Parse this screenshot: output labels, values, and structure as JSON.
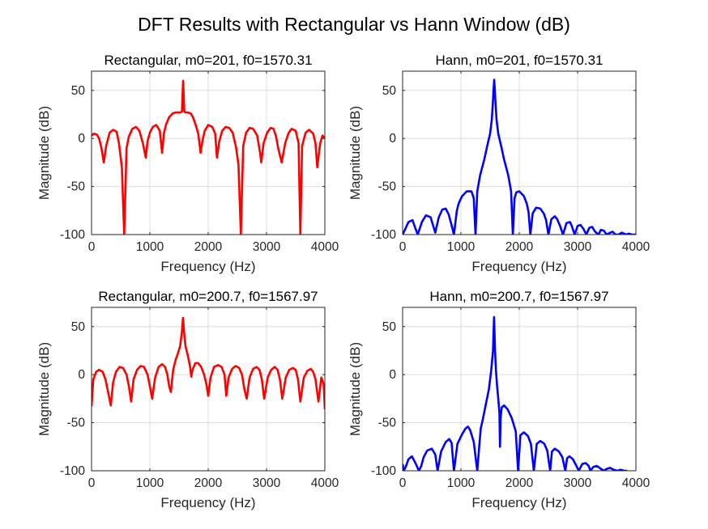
{
  "figure": {
    "title": "DFT Results with Rectangular vs Hann Window (dB)"
  },
  "colors": {
    "rectangular": "#ff0000",
    "hann": "#0000ff",
    "grid": "#dcdcdc",
    "axis": "#262626"
  },
  "chart_data": [
    {
      "type": "line",
      "title": "Rectangular, m0=201, f0=1570.31",
      "xlabel": "Frequency (Hz)",
      "ylabel": "Magnitude (dB)",
      "xlim": [
        0,
        4000
      ],
      "ylim": [
        -100,
        70
      ],
      "xticks": [
        "0",
        "1000",
        "2000",
        "3000",
        "4000"
      ],
      "yticks": [
        "-100",
        "-50",
        "0",
        "50"
      ],
      "grid": true,
      "color": "#ff0000",
      "series": [
        {
          "x": [
            0,
            40,
            90,
            130,
            170,
            210,
            250,
            310,
            370,
            430,
            470,
            520,
            560,
            600,
            640,
            700,
            760,
            820,
            880,
            930,
            960,
            1000,
            1050,
            1110,
            1170,
            1210,
            1240,
            1280,
            1330,
            1390,
            1440,
            1490,
            1520,
            1550,
            1560,
            1570.31,
            1580,
            1590,
            1610,
            1650,
            1700,
            1740,
            1780,
            1830,
            1870,
            1900,
            1940,
            2000,
            2070,
            2120,
            2150,
            2190,
            2240,
            2300,
            2360,
            2420,
            2480,
            2520,
            2560,
            2600,
            2650,
            2710,
            2770,
            2840,
            2890,
            2910,
            2950,
            3010,
            3070,
            3120,
            3160,
            3200,
            3260,
            3320,
            3380,
            3430,
            3500,
            3550,
            3580,
            3610,
            3670,
            3730,
            3800,
            3840,
            3870,
            3920,
            3960,
            4000
          ],
          "y": [
            3,
            5,
            4,
            0,
            -10,
            -25,
            -8,
            6,
            9,
            7,
            -5,
            -30,
            -100,
            -10,
            2,
            10,
            12,
            8,
            -5,
            -20,
            -3,
            6,
            12,
            14,
            8,
            -15,
            5,
            15,
            22,
            26,
            27,
            27,
            27,
            28,
            45,
            60,
            45,
            28,
            27,
            27,
            26,
            22,
            15,
            5,
            -15,
            -3,
            8,
            14,
            12,
            5,
            -20,
            -3,
            8,
            12,
            11,
            6,
            -10,
            -28,
            -100,
            -8,
            6,
            11,
            10,
            3,
            -15,
            -25,
            -5,
            6,
            11,
            10,
            3,
            -10,
            -25,
            -5,
            6,
            10,
            8,
            -5,
            -100,
            -8,
            6,
            9,
            5,
            -5,
            -30,
            -5,
            3,
            0
          ]
        }
      ]
    },
    {
      "type": "line",
      "title": "Hann, m0=201, f0=1570.31",
      "xlabel": "Frequency (Hz)",
      "ylabel": "Magnitude (dB)",
      "xlim": [
        0,
        4000
      ],
      "ylim": [
        -100,
        70
      ],
      "xticks": [
        "0",
        "1000",
        "2000",
        "3000",
        "4000"
      ],
      "yticks": [
        "-100",
        "-50",
        "0",
        "50"
      ],
      "grid": true,
      "color": "#0000ff",
      "series": [
        {
          "x": [
            0,
            40,
            100,
            170,
            210,
            260,
            330,
            400,
            480,
            520,
            560,
            620,
            680,
            740,
            790,
            830,
            880,
            930,
            960,
            980,
            1020,
            1100,
            1180,
            1220,
            1250,
            1280,
            1330,
            1400,
            1450,
            1500,
            1530,
            1550,
            1560,
            1570.31,
            1580,
            1590,
            1610,
            1640,
            1690,
            1740,
            1810,
            1860,
            1890,
            1920,
            1950,
            2000,
            2080,
            2130,
            2160,
            2190,
            2230,
            2290,
            2360,
            2420,
            2460,
            2500,
            2550,
            2610,
            2650,
            2700,
            2750,
            2810,
            2870,
            2900,
            2950,
            3000,
            3050,
            3100,
            3150,
            3200,
            3250,
            3300,
            3360,
            3400,
            3450,
            3500,
            3560,
            3600,
            3650,
            3700,
            3760,
            3830,
            3880,
            3930,
            3980,
            4000
          ],
          "y": [
            -100,
            -95,
            -87,
            -85,
            -92,
            -100,
            -87,
            -80,
            -82,
            -90,
            -98,
            -82,
            -74,
            -73,
            -79,
            -88,
            -100,
            -75,
            -68,
            -65,
            -60,
            -55,
            -55,
            -62,
            -100,
            -55,
            -38,
            -22,
            -8,
            5,
            20,
            40,
            52,
            61,
            52,
            40,
            20,
            5,
            -8,
            -22,
            -38,
            -55,
            -100,
            -62,
            -56,
            -55,
            -60,
            -68,
            -77,
            -100,
            -78,
            -72,
            -73,
            -78,
            -85,
            -100,
            -84,
            -81,
            -84,
            -91,
            -100,
            -88,
            -87,
            -91,
            -100,
            -91,
            -90,
            -94,
            -100,
            -93,
            -92,
            -97,
            -100,
            -95,
            -96,
            -100,
            -98,
            -97,
            -100,
            -100,
            -98,
            -100,
            -99,
            -100,
            -100,
            -100
          ]
        }
      ]
    },
    {
      "type": "line",
      "title": "Rectangular, m0=200.7, f0=1567.97",
      "xlabel": "Frequency (Hz)",
      "ylabel": "Magnitude (dB)",
      "xlim": [
        0,
        4000
      ],
      "ylim": [
        -100,
        70
      ],
      "xticks": [
        "0",
        "1000",
        "2000",
        "3000",
        "4000"
      ],
      "yticks": [
        "-100",
        "-50",
        "0",
        "50"
      ],
      "grid": true,
      "color": "#ff0000",
      "series": [
        {
          "x": [
            0,
            30,
            80,
            130,
            190,
            240,
            290,
            330,
            370,
            420,
            480,
            540,
            600,
            640,
            680,
            720,
            780,
            840,
            900,
            960,
            1000,
            1040,
            1090,
            1150,
            1210,
            1260,
            1300,
            1330,
            1360,
            1400,
            1440,
            1480,
            1520,
            1550,
            1567.97,
            1585,
            1610,
            1650,
            1690,
            1710,
            1730,
            1780,
            1830,
            1880,
            1930,
            1970,
            2000,
            2040,
            2100,
            2170,
            2230,
            2280,
            2310,
            2350,
            2410,
            2470,
            2530,
            2580,
            2620,
            2660,
            2710,
            2770,
            2830,
            2880,
            2920,
            2960,
            3020,
            3080,
            3140,
            3190,
            3230,
            3270,
            3330,
            3390,
            3450,
            3500,
            3540,
            3580,
            3640,
            3700,
            3760,
            3800,
            3840,
            3890,
            3940,
            3980,
            4000
          ],
          "y": [
            -33,
            -5,
            3,
            5,
            3,
            -5,
            -20,
            -32,
            -8,
            3,
            8,
            7,
            0,
            -12,
            -28,
            -5,
            5,
            9,
            8,
            0,
            -12,
            -25,
            -3,
            8,
            11,
            8,
            0,
            -12,
            -18,
            5,
            15,
            22,
            30,
            45,
            59,
            45,
            30,
            20,
            8,
            -2,
            5,
            12,
            12,
            8,
            0,
            -10,
            -22,
            -3,
            8,
            10,
            8,
            0,
            -22,
            -3,
            6,
            9,
            7,
            0,
            -15,
            -25,
            -3,
            6,
            8,
            5,
            -5,
            -25,
            -3,
            5,
            8,
            5,
            -5,
            -25,
            -3,
            5,
            7,
            5,
            -5,
            -28,
            -3,
            4,
            6,
            3,
            -5,
            -28,
            -3,
            -10,
            -36
          ]
        }
      ]
    },
    {
      "type": "line",
      "title": "Hann, m0=200.7, f0=1567.97",
      "xlabel": "Frequency (Hz)",
      "ylabel": "Magnitude (dB)",
      "xlim": [
        0,
        4000
      ],
      "ylim": [
        -100,
        70
      ],
      "xticks": [
        "0",
        "1000",
        "2000",
        "3000",
        "4000"
      ],
      "yticks": [
        "-100",
        "-50",
        "0",
        "50"
      ],
      "grid": true,
      "color": "#0000ff",
      "series": [
        {
          "x": [
            0,
            20,
            60,
            100,
            160,
            220,
            280,
            320,
            360,
            420,
            500,
            560,
            600,
            660,
            740,
            800,
            840,
            880,
            940,
            1020,
            1080,
            1120,
            1160,
            1220,
            1280,
            1320,
            1340,
            1370,
            1420,
            1480,
            1520,
            1550,
            1567.97,
            1585,
            1600,
            1620,
            1640,
            1660,
            1670,
            1680,
            1700,
            1740,
            1800,
            1870,
            1940,
            1980,
            2020,
            2080,
            2150,
            2200,
            2250,
            2300,
            2360,
            2430,
            2480,
            2530,
            2560,
            2610,
            2680,
            2740,
            2790,
            2820,
            2860,
            2920,
            2980,
            3020,
            3080,
            3140,
            3190,
            3220,
            3270,
            3330,
            3400,
            3450,
            3500,
            3560,
            3620,
            3680,
            3740,
            3800,
            3850
          ],
          "y": [
            -93,
            -100,
            -95,
            -88,
            -85,
            -92,
            -100,
            -95,
            -86,
            -79,
            -77,
            -83,
            -100,
            -80,
            -70,
            -67,
            -71,
            -100,
            -72,
            -62,
            -56,
            -54,
            -58,
            -70,
            -100,
            -70,
            -56,
            -48,
            -33,
            -15,
            5,
            25,
            60,
            25,
            5,
            -12,
            -25,
            -40,
            -75,
            -45,
            -34,
            -32,
            -36,
            -45,
            -59,
            -100,
            -63,
            -60,
            -64,
            -72,
            -100,
            -72,
            -69,
            -72,
            -79,
            -100,
            -80,
            -77,
            -80,
            -86,
            -100,
            -87,
            -85,
            -88,
            -95,
            -100,
            -93,
            -92,
            -95,
            -100,
            -96,
            -95,
            -98,
            -100,
            -98,
            -97,
            -99,
            -100,
            -99,
            -100,
            -100
          ]
        }
      ]
    }
  ]
}
